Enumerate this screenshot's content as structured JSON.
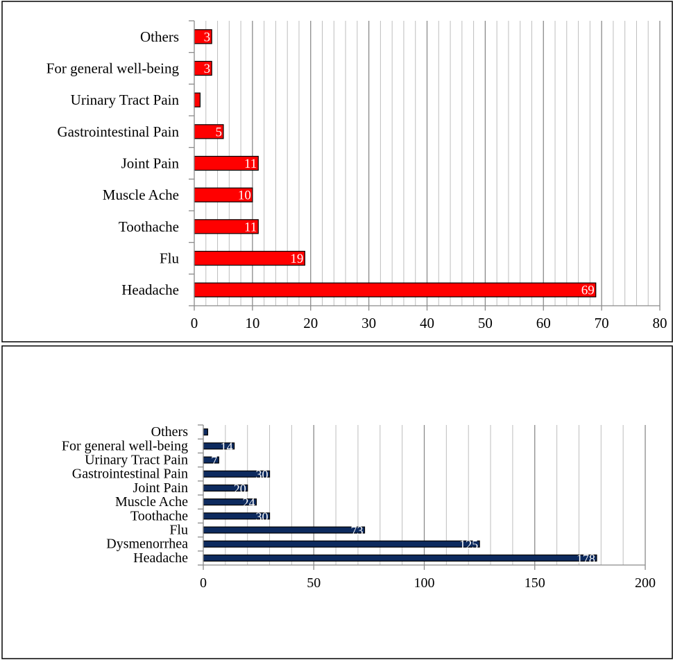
{
  "chart_data": [
    {
      "type": "bar",
      "orientation": "horizontal",
      "categories": [
        "Headache",
        "Flu",
        "Toothache",
        "Muscle Ache",
        "Joint Pain",
        "Gastrointestinal Pain",
        "Urinary Tract Pain",
        "For general well-being",
        "Others"
      ],
      "values": [
        69,
        19,
        11,
        10,
        11,
        5,
        1,
        3,
        3
      ],
      "data_labels": [
        "69",
        "19",
        "11",
        "10",
        "11",
        "5",
        "",
        "3",
        "3"
      ],
      "xlim": [
        0,
        80
      ],
      "x_ticks": [
        0,
        10,
        20,
        30,
        40,
        50,
        60,
        70,
        80
      ],
      "minor_grid_step": 2,
      "grid": true,
      "bar_color": "#ff0000",
      "label_color": "#ffffff"
    },
    {
      "type": "bar",
      "orientation": "horizontal",
      "categories": [
        "Headache",
        "Dysmenorrhea",
        "Flu",
        "Toothache",
        "Muscle Ache",
        "Joint Pain",
        "Gastrointestinal Pain",
        "Urinary Tract Pain",
        "For general well-being",
        "Others"
      ],
      "values": [
        178,
        125,
        73,
        30,
        24,
        20,
        30,
        7,
        14,
        2
      ],
      "data_labels": [
        "178",
        "125",
        "73",
        "30",
        "24",
        "20",
        "30",
        "7",
        "14",
        ""
      ],
      "xlim": [
        0,
        200
      ],
      "x_ticks": [
        0,
        50,
        100,
        150,
        200
      ],
      "minor_grid_step": 10,
      "grid": true,
      "bar_color": "#0d2a5e",
      "label_color": "#ffffff"
    }
  ]
}
